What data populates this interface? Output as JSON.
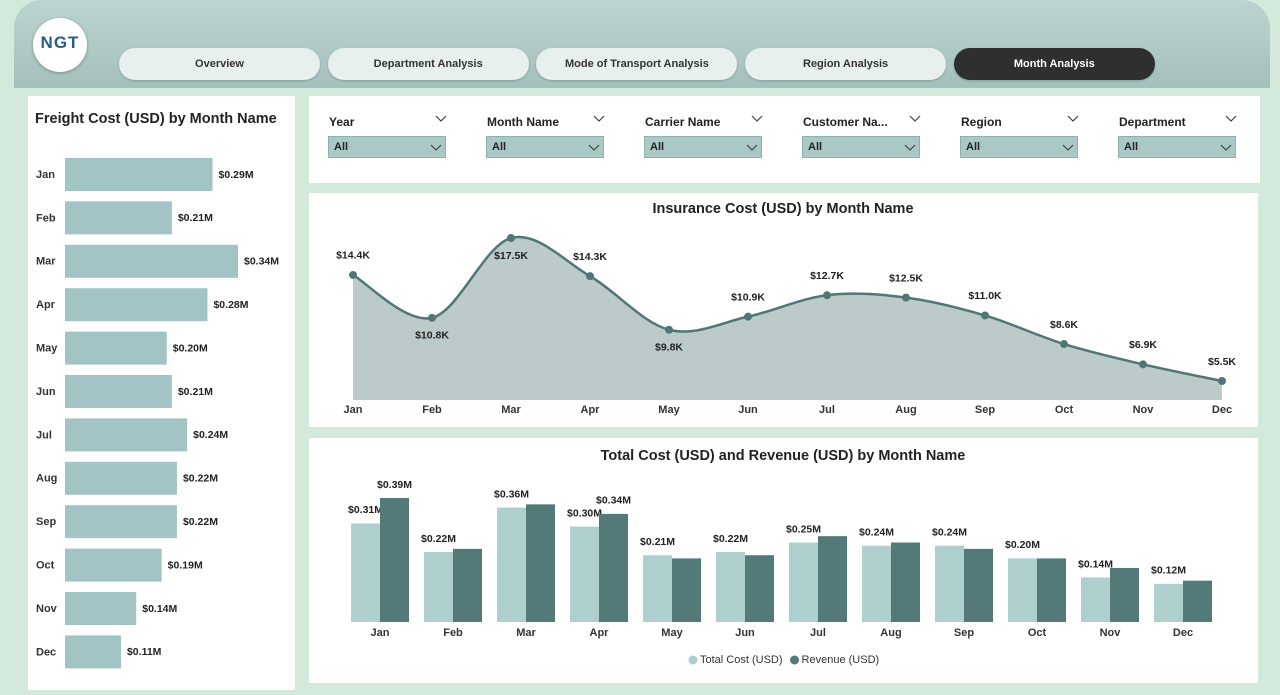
{
  "logo": {
    "text": "NGT"
  },
  "nav": {
    "tabs": [
      "Overview",
      "Department Analysis",
      "Mode of Transport Analysis",
      "Region Analysis",
      "Month Analysis"
    ],
    "active": 4
  },
  "filters": [
    {
      "label": "Year",
      "value": "All"
    },
    {
      "label": "Month Name",
      "value": "All"
    },
    {
      "label": "Carrier Name",
      "value": "All"
    },
    {
      "label": "Customer Na...",
      "value": "All"
    },
    {
      "label": "Region",
      "value": "All"
    },
    {
      "label": "Department",
      "value": "All"
    }
  ],
  "chart_data": [
    {
      "type": "bar",
      "orientation": "horizontal",
      "title": "Freight Cost (USD) by Month Name",
      "categories": [
        "Jan",
        "Feb",
        "Mar",
        "Apr",
        "May",
        "Jun",
        "Jul",
        "Aug",
        "Sep",
        "Oct",
        "Nov",
        "Dec"
      ],
      "values": [
        0.29,
        0.21,
        0.34,
        0.28,
        0.2,
        0.21,
        0.24,
        0.22,
        0.22,
        0.19,
        0.14,
        0.11
      ],
      "value_labels": [
        "$0.29M",
        "$0.21M",
        "$0.34M",
        "$0.28M",
        "$0.20M",
        "$0.21M",
        "$0.24M",
        "$0.22M",
        "$0.22M",
        "$0.19M",
        "$0.14M",
        "$0.11M"
      ],
      "color": "#a3c4c4"
    },
    {
      "type": "area",
      "title": "Insurance Cost (USD) by Month Name",
      "categories": [
        "Jan",
        "Feb",
        "Mar",
        "Apr",
        "May",
        "Jun",
        "Jul",
        "Aug",
        "Sep",
        "Oct",
        "Nov",
        "Dec"
      ],
      "values": [
        14.4,
        10.8,
        17.5,
        14.3,
        9.8,
        10.9,
        12.7,
        12.5,
        11.0,
        8.6,
        6.9,
        5.5
      ],
      "value_labels": [
        "$14.4K",
        "$10.8K",
        "$17.5K",
        "$14.3K",
        "$9.8K",
        "$10.9K",
        "$12.7K",
        "$12.5K",
        "$11.0K",
        "$8.6K",
        "$6.9K",
        "$5.5K"
      ],
      "color": "#507775",
      "fill": "#bccaca"
    },
    {
      "type": "bar",
      "title": "Total Cost (USD) and Revenue (USD) by Month Name",
      "categories": [
        "Jan",
        "Feb",
        "Mar",
        "Apr",
        "May",
        "Jun",
        "Jul",
        "Aug",
        "Sep",
        "Oct",
        "Nov",
        "Dec"
      ],
      "series": [
        {
          "name": "Total Cost (USD)",
          "color": "#afcfce",
          "values": [
            0.31,
            0.22,
            0.36,
            0.3,
            0.21,
            0.22,
            0.25,
            0.24,
            0.24,
            0.2,
            0.14,
            0.12
          ],
          "value_labels": [
            "$0.31M",
            "$0.22M",
            "$0.36M",
            "$0.30M",
            "$0.21M",
            "$0.22M",
            "$0.25M",
            "$0.24M",
            "$0.24M",
            "$0.20M",
            "$0.14M",
            "$0.12M"
          ]
        },
        {
          "name": "Revenue (USD)",
          "color": "#537a78",
          "values": [
            0.39,
            0.23,
            0.37,
            0.34,
            0.2,
            0.21,
            0.27,
            0.25,
            0.23,
            0.2,
            0.17,
            0.13
          ],
          "value_labels": [
            "$0.39M",
            null,
            null,
            "$0.34M",
            null,
            null,
            null,
            null,
            null,
            null,
            null,
            null
          ]
        }
      ],
      "legend": "bottom"
    }
  ]
}
